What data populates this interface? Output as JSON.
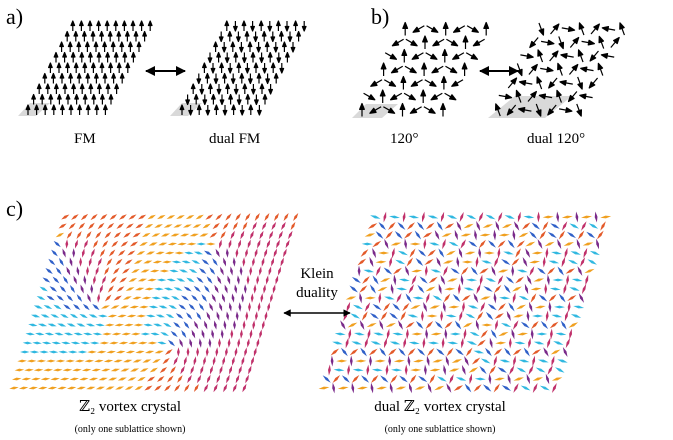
{
  "panels": {
    "a": {
      "letter": "a)",
      "left_caption": "FM",
      "right_caption": "dual FM",
      "left_state": "all-up",
      "right_state": "alternating-up-down"
    },
    "b": {
      "letter": "b)",
      "left_caption": "120°",
      "right_caption": "dual 120°",
      "left_state": "three-sublattice-120",
      "right_state": "dual-120"
    },
    "c": {
      "letter": "c)",
      "duality_label_line1": "Klein",
      "duality_label_line2": "duality",
      "left_caption": "ℤ₂ vortex crystal",
      "left_note": "(only one sublattice shown)",
      "right_caption": "dual ℤ₂ vortex crystal",
      "right_note": "(only one sublattice shown)",
      "color_map": [
        "#f0a020",
        "#e35a2a",
        "#c0306a",
        "#7a2a8a",
        "#3060c8",
        "#30b8e0"
      ]
    }
  },
  "colors": {
    "arrow": "#000000",
    "highlight": "#d9d9d9"
  }
}
